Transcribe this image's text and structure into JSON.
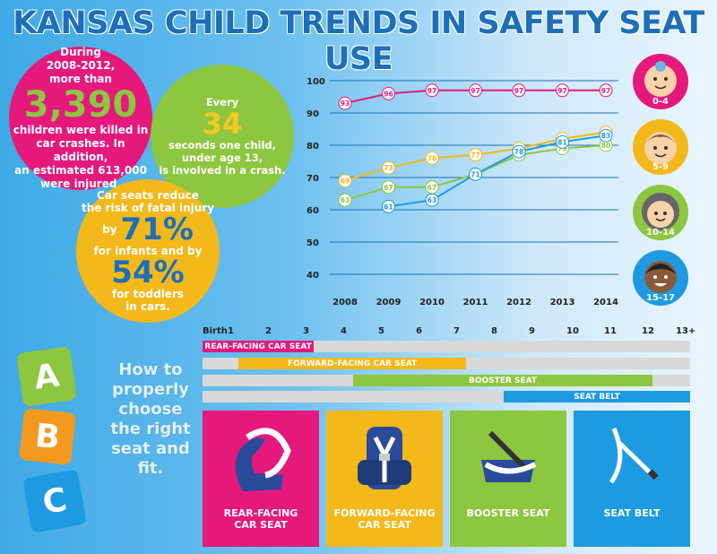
{
  "title": "KANSAS CHILD TRENDS IN SAFETY SEAT USE",
  "stat1": {
    "line1": "During",
    "line2": "2008-2012,",
    "line3": "more than",
    "big": "3,390",
    "line4": "children were killed in",
    "line5": "car crashes. In addition,",
    "line6": "an estimated 613,000",
    "line7": "were injured."
  },
  "stat2": {
    "line1": "Every",
    "big": "34",
    "line2": "seconds one child,",
    "line3": "under age 13,",
    "line4": "is involved in a crash."
  },
  "stat3": {
    "line1": "Car seats reduce",
    "line2": "the risk of fatal injury",
    "by1": "by",
    "big1": "71%",
    "line3": "for infants and by",
    "big2": "54%",
    "line4": "for toddlers",
    "line5": "in cars."
  },
  "avatars": [
    {
      "label": "0-4",
      "color": "#e5197c",
      "icon": "toddler-girl-icon"
    },
    {
      "label": "5-9",
      "color": "#f3b81a",
      "icon": "child-boy-icon"
    },
    {
      "label": "10-14",
      "color": "#8dc63f",
      "icon": "child-curly-icon"
    },
    {
      "label": "15-17",
      "color": "#1e9be0",
      "icon": "teen-boy-icon"
    }
  ],
  "chart_data": {
    "type": "line",
    "x": [
      "2008",
      "2009",
      "2010",
      "2011",
      "2012",
      "2013",
      "2014"
    ],
    "ylim": [
      40,
      100
    ],
    "yticks": [
      40,
      50,
      60,
      70,
      80,
      90,
      100
    ],
    "grid": true,
    "series": [
      {
        "name": "0-4",
        "color": "#e5197c",
        "values": [
          93,
          96,
          97,
          97,
          97,
          97,
          97
        ]
      },
      {
        "name": "5-9",
        "color": "#f3b81a",
        "values": [
          69,
          73,
          76,
          77,
          79,
          82,
          84
        ]
      },
      {
        "name": "10-14",
        "color": "#8dc63f",
        "values": [
          63,
          67,
          67,
          71,
          77,
          79,
          80
        ]
      },
      {
        "name": "15-17",
        "color": "#1e9be0",
        "values": [
          null,
          61,
          63,
          71,
          78,
          81,
          83
        ]
      }
    ]
  },
  "timeline": {
    "ages": [
      "Birth",
      "1",
      "2",
      "3",
      "4",
      "5",
      "6",
      "7",
      "8",
      "9",
      "10",
      "11",
      "12",
      "13+"
    ],
    "bars": [
      {
        "label": "REAR-FACING CAR SEAT",
        "color": "#e5197c"
      },
      {
        "label": "FORWARD-FACING CAR SEAT",
        "color": "#f3b81a"
      },
      {
        "label": "BOOSTER SEAT",
        "color": "#8dc63f"
      },
      {
        "label": "SEAT BELT",
        "color": "#1e9be0"
      }
    ]
  },
  "howto": {
    "l1": "How to",
    "l2": "properly",
    "l3": "choose",
    "l4": "the right",
    "l5": "seat and",
    "l6": "fit."
  },
  "blocks": [
    "A",
    "B",
    "C"
  ],
  "cards": [
    {
      "l1": "REAR-FACING",
      "l2": "CAR SEAT",
      "color": "#e5197c",
      "icon": "rear-facing-seat-icon"
    },
    {
      "l1": "FORWARD-FACING",
      "l2": "CAR SEAT",
      "color": "#f3b81a",
      "icon": "forward-facing-seat-icon"
    },
    {
      "l1": "BOOSTER SEAT",
      "l2": "",
      "color": "#8dc63f",
      "icon": "booster-seat-icon"
    },
    {
      "l1": "SEAT BELT",
      "l2": "",
      "color": "#1e9be0",
      "icon": "seat-belt-icon"
    }
  ]
}
